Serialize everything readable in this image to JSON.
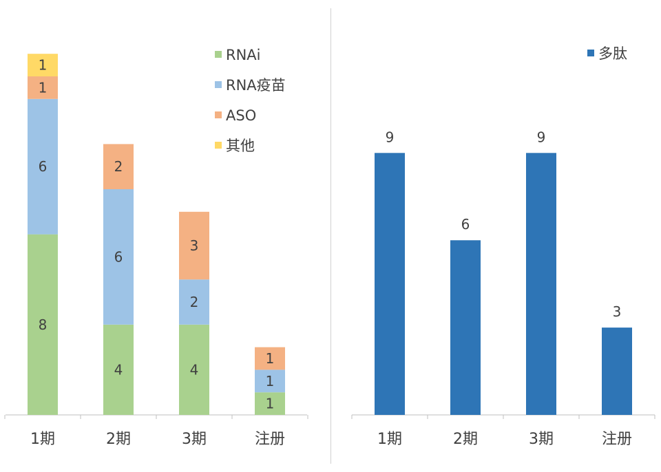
{
  "chart_data": [
    {
      "type": "bar",
      "stacked": true,
      "categories": [
        "1期",
        "2期",
        "3期",
        "注册"
      ],
      "series": [
        {
          "name": "RNAi",
          "color": "#a9d18e",
          "values": [
            8,
            4,
            4,
            1
          ]
        },
        {
          "name": "RNA疫苗",
          "color": "#9dc3e6",
          "values": [
            6,
            6,
            2,
            1
          ]
        },
        {
          "name": "ASO",
          "color": "#f4b183",
          "values": [
            1,
            2,
            3,
            1
          ]
        },
        {
          "name": "其他",
          "color": "#ffd966",
          "values": [
            1,
            0,
            0,
            0
          ]
        }
      ],
      "data_labels": true,
      "legend": "top-right",
      "grid": false,
      "ylim": [
        0,
        16
      ]
    },
    {
      "type": "bar",
      "categories": [
        "1期",
        "2期",
        "3期",
        "注册"
      ],
      "series": [
        {
          "name": "多肽",
          "color": "#2e75b6",
          "values": [
            9,
            6,
            9,
            3
          ]
        }
      ],
      "data_labels": true,
      "legend": "top-right",
      "grid": false,
      "ylim": [
        0,
        12
      ]
    }
  ]
}
